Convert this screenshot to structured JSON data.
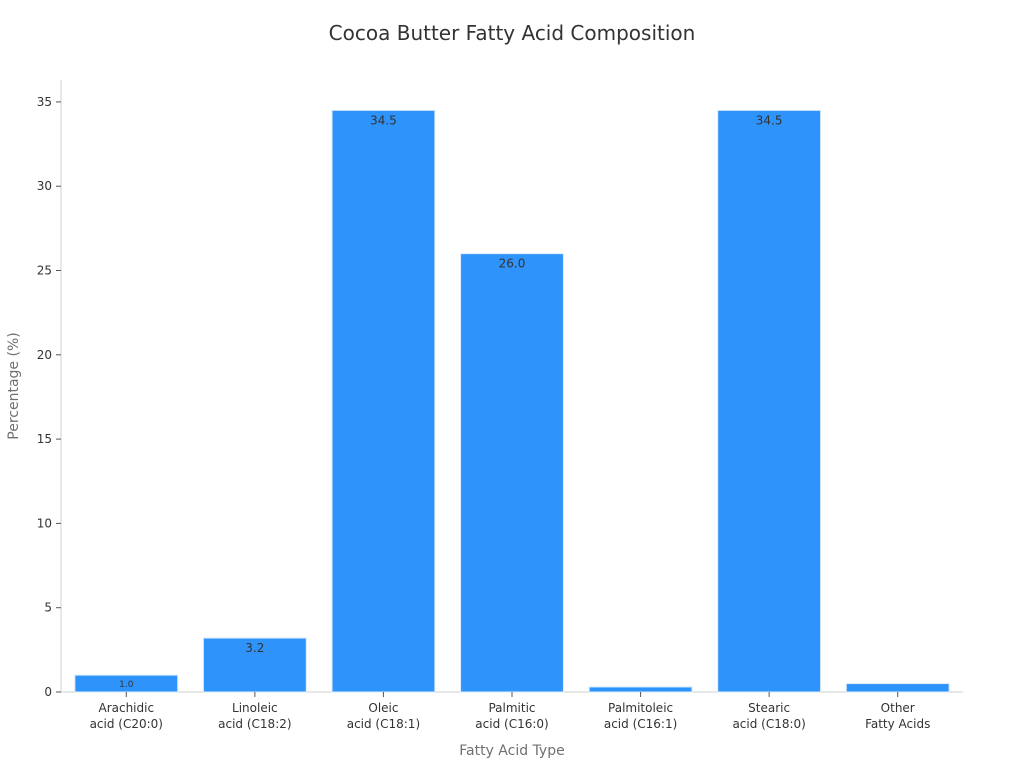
{
  "chart_data": {
    "type": "bar",
    "title": "Cocoa Butter Fatty Acid Composition",
    "xlabel": "Fatty Acid Type",
    "ylabel": "Percentage (%)",
    "ylim": [
      0,
      36.3
    ],
    "yticks": [
      0,
      5,
      10,
      15,
      20,
      25,
      30,
      35
    ],
    "grid": false,
    "bar_color": "#2e93fa",
    "categories": [
      [
        "Arachidic",
        "acid (C20:0)"
      ],
      [
        "Linoleic",
        "acid (C18:2)"
      ],
      [
        "Oleic",
        "acid (C18:1)"
      ],
      [
        "Palmitic",
        "acid (C16:0)"
      ],
      [
        "Palmitoleic",
        "acid (C16:1)"
      ],
      [
        "Stearic",
        "acid (C18:0)"
      ],
      [
        "Other",
        "Fatty Acids"
      ]
    ],
    "values": [
      1.0,
      3.2,
      34.5,
      26.0,
      0.3,
      34.5,
      0.5
    ],
    "data_labels": [
      "1.0",
      "3.2",
      "34.5",
      "26.0",
      "",
      "34.5",
      ""
    ]
  }
}
